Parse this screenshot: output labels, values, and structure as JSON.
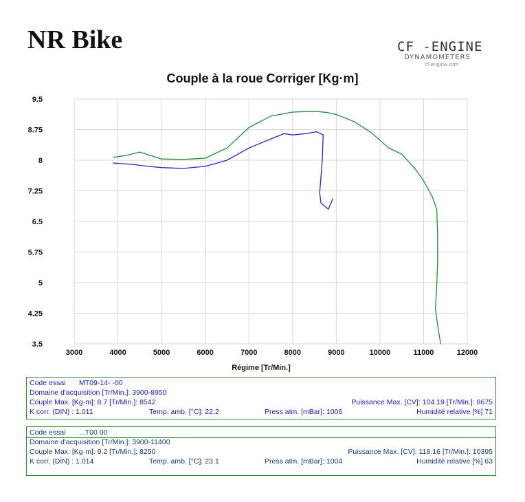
{
  "header": {
    "brand": "NR Bike",
    "logo_main": "CF -ENGINE",
    "logo_sub": "DYNAMOMETERS",
    "logo_web": "cf-engine.com"
  },
  "chart_data": {
    "type": "line",
    "title": "Couple à la roue Corriger [Kg·m]",
    "xlabel": "Régime [Tr/Min.]",
    "ylabel": "",
    "xlim": [
      3000,
      12000
    ],
    "ylim": [
      3.5,
      9.5
    ],
    "xticks": [
      "3000",
      "4000",
      "5000",
      "6000",
      "7000",
      "8000",
      "9000",
      "10000",
      "11000",
      "12000"
    ],
    "yticks": [
      "9.5",
      "8.75",
      "8",
      "7.25",
      "6.5",
      "5.75",
      "5",
      "4.25",
      "3.5"
    ],
    "grid": true,
    "series": [
      {
        "name": "MT09-14-...-00",
        "color": "#2424c8",
        "points": [
          [
            3900,
            7.93
          ],
          [
            4300,
            7.9
          ],
          [
            4700,
            7.85
          ],
          [
            5000,
            7.82
          ],
          [
            5500,
            7.8
          ],
          [
            6000,
            7.85
          ],
          [
            6500,
            8.0
          ],
          [
            7000,
            8.3
          ],
          [
            7500,
            8.52
          ],
          [
            7800,
            8.65
          ],
          [
            8000,
            8.62
          ],
          [
            8300,
            8.65
          ],
          [
            8550,
            8.7
          ],
          [
            8700,
            8.62
          ],
          [
            8680,
            8.0
          ],
          [
            8620,
            7.2
          ],
          [
            8650,
            6.95
          ],
          [
            8820,
            6.8
          ],
          [
            8920,
            7.05
          ]
        ]
      },
      {
        "name": "...T00...00",
        "color": "#1f8a3a",
        "points": [
          [
            3900,
            8.07
          ],
          [
            4200,
            8.12
          ],
          [
            4500,
            8.2
          ],
          [
            4800,
            8.1
          ],
          [
            5000,
            8.03
          ],
          [
            5500,
            8.02
          ],
          [
            6000,
            8.05
          ],
          [
            6500,
            8.3
          ],
          [
            7000,
            8.8
          ],
          [
            7500,
            9.08
          ],
          [
            8000,
            9.18
          ],
          [
            8500,
            9.2
          ],
          [
            8800,
            9.17
          ],
          [
            9000,
            9.12
          ],
          [
            9400,
            8.95
          ],
          [
            9800,
            8.68
          ],
          [
            10200,
            8.3
          ],
          [
            10500,
            8.15
          ],
          [
            10800,
            7.8
          ],
          [
            11000,
            7.5
          ],
          [
            11200,
            7.1
          ],
          [
            11300,
            6.8
          ],
          [
            11320,
            6.2
          ],
          [
            11320,
            5.5
          ],
          [
            11300,
            4.9
          ],
          [
            11270,
            4.35
          ],
          [
            11330,
            3.9
          ],
          [
            11390,
            3.5
          ]
        ]
      }
    ]
  },
  "info_tests": [
    {
      "code_label": "Code essai",
      "code_value": "MT09-14-             -00",
      "domain": "Domaine d'acquisition [Tr/Min.]: 3900-8950",
      "couple_max": "Couple Max. [Kg·m]: 8.7   [Tr/Min.]: 8542",
      "puissance_max": "Puissance Max. [CV]: 104.19   [Tr/Min.]: 8675",
      "k_corr": "K corr. (DIN) : 1.011",
      "temp": "Temp. amb. [°C]: 22.2",
      "press": "Press atm. [mBar]: 1006",
      "humid": "Humidité relative [%]  71"
    },
    {
      "code_label": "Code essai",
      "code_value": "...T00            00",
      "domain": "Domaine d'acquisition [Tr/Min.]: 3900-11400",
      "couple_max": "Couple Max. [Kg·m]: 9.2   [Tr/Min.]: 8250",
      "puissance_max": "Puissance Max. [CV]: 118.16   [Tr/Min.]: 10395",
      "k_corr": "K corr. (DIN) : 1.014",
      "temp": "Temp. amb. [°C]: 23.1",
      "press": "Press atm. [mBar]: 1004",
      "humid": "Humidité relative [%]  63"
    }
  ]
}
